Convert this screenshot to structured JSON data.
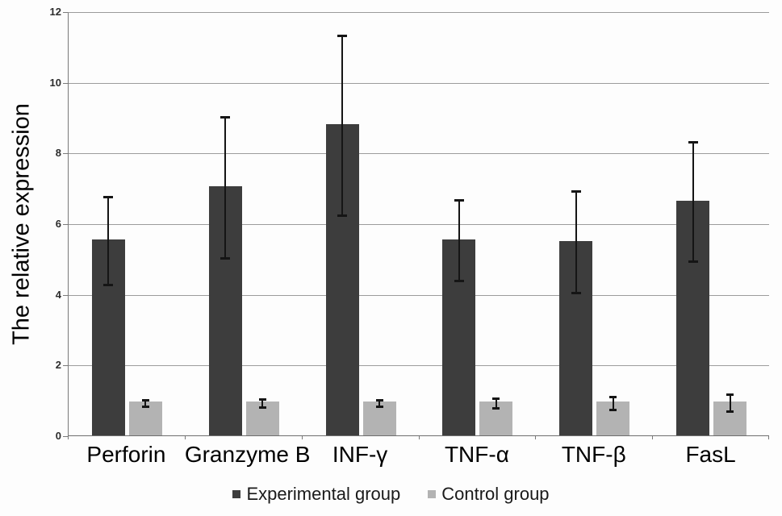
{
  "chart_data": {
    "type": "bar",
    "title": "",
    "categories": [
      "Perforin",
      "Granzyme B",
      "INF-γ",
      "TNF-α",
      "TNF-β",
      "FasL"
    ],
    "series": [
      {
        "name": "Experimental group",
        "color": "#3d3d3d",
        "values": [
          5.55,
          7.05,
          8.8,
          5.55,
          5.5,
          6.65
        ],
        "errors": [
          1.25,
          2.0,
          2.55,
          1.15,
          1.45,
          1.7
        ]
      },
      {
        "name": "Control group",
        "color": "#b3b3b3",
        "values": [
          0.95,
          0.95,
          0.95,
          0.95,
          0.95,
          0.95
        ],
        "errors": [
          0.1,
          0.12,
          0.1,
          0.15,
          0.2,
          0.25
        ]
      }
    ],
    "xlabel": "",
    "ylabel": "The relative expression",
    "ylim": [
      0,
      12
    ],
    "yticks": [
      0,
      2,
      4,
      6,
      8,
      10,
      12
    ],
    "grid": true,
    "legend_position": "bottom",
    "error_bar_color": "#151515",
    "gridline_color": "#9c9c9c"
  }
}
